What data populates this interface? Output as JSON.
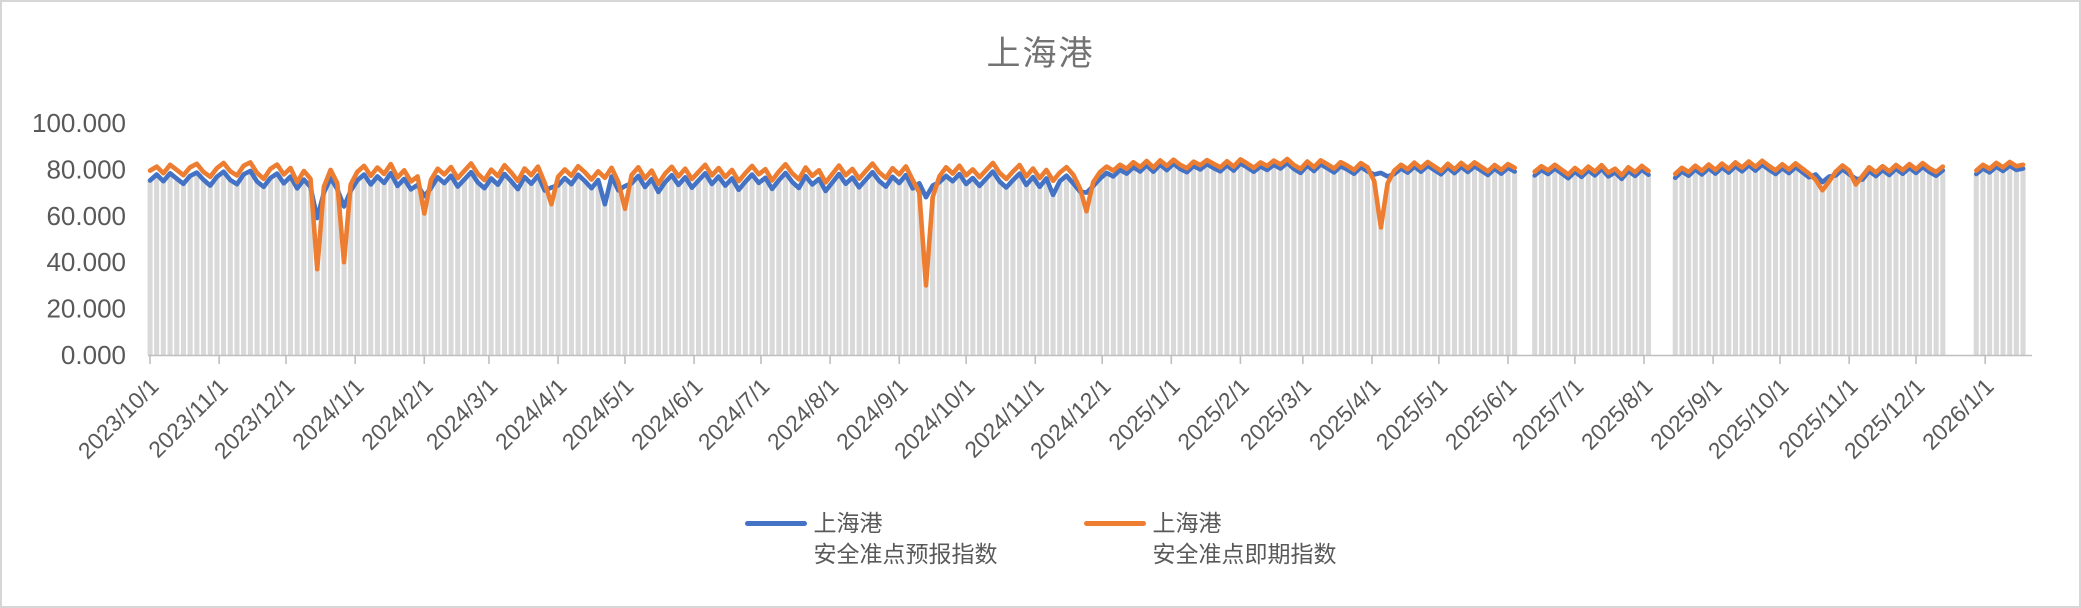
{
  "title": "上海港",
  "colors": {
    "forecast_blue": "#4472C4",
    "spot_orange": "#ED7D31",
    "background_bars": "#D9D9D9",
    "axis_line": "#BFBFBF",
    "tick_label": "#595959",
    "title_gray": "#737373"
  },
  "legend": [
    {
      "line1": "上海港",
      "line2": "安全准点预报指数",
      "series": "forecast",
      "color": "#4472C4"
    },
    {
      "line1": "上海港",
      "line2": "安全准点即期指数",
      "series": "spot",
      "color": "#ED7D31"
    }
  ],
  "y_axis": {
    "tick_labels": [
      "100.000",
      "80.000",
      "60.000",
      "40.000",
      "20.000",
      "0.000"
    ],
    "tick_values": [
      100,
      80,
      60,
      40,
      20,
      0
    ],
    "min": 0,
    "max": 100
  },
  "x_axis": {
    "tick_labels": [
      "2023/10/1",
      "2023/11/1",
      "2023/12/1",
      "2024/1/1",
      "2024/2/1",
      "2024/3/1",
      "2024/4/1",
      "2024/5/1",
      "2024/6/1",
      "2024/7/1",
      "2024/8/1",
      "2024/9/1",
      "2024/10/1",
      "2024/11/1",
      "2024/12/1",
      "2025/1/1",
      "2025/2/1",
      "2025/3/1",
      "2025/4/1",
      "2025/5/1",
      "2025/6/1",
      "2025/7/1",
      "2025/8/1",
      "2025/9/1",
      "2025/10/1",
      "2025/11/1",
      "2025/12/1",
      "2026/1/1"
    ]
  },
  "chart_data": {
    "type": "line",
    "title": "上海港",
    "ylabel": "",
    "xlabel": "",
    "ylim": [
      0,
      100
    ],
    "grid": false,
    "legend_position": "bottom",
    "x_start_date": "2023/10/1",
    "x_end_date": "2026/1/18",
    "x_axis_span_days": 844,
    "sample_interval_days": 3,
    "data_gaps": [
      "2025/6/6-2025/6/11",
      "2025/8/5-2025/8/13",
      "2025/12/16-2025/12/27"
    ],
    "background_bars": "light-gray columns every sample, from 0 up to the lower of the two series",
    "series": [
      {
        "name": "上海港安全准点预报指数",
        "color": "#4472C4",
        "values": [
          75.2,
          77.8,
          74.9,
          78.3,
          76.0,
          73.8,
          77.2,
          78.6,
          75.5,
          73.0,
          76.8,
          79.0,
          75.4,
          73.6,
          77.9,
          79.3,
          74.8,
          72.5,
          76.3,
          78.2,
          74.0,
          76.9,
          71.8,
          75.6,
          72.4,
          59.0,
          70.0,
          76.2,
          71.5,
          64.0,
          70.8,
          75.3,
          77.8,
          73.5,
          77.0,
          74.2,
          78.4,
          72.9,
          75.9,
          71.4,
          73.3,
          68.5,
          72.0,
          76.6,
          74.1,
          77.3,
          72.6,
          75.7,
          78.8,
          74.4,
          71.9,
          76.1,
          73.4,
          78.0,
          74.9,
          71.5,
          76.7,
          73.8,
          77.4,
          70.9,
          72.2,
          73.1,
          76.3,
          73.6,
          77.7,
          75.0,
          71.9,
          75.4,
          65.0,
          77.0,
          71.0,
          72.8,
          74.0,
          77.2,
          72.4,
          75.8,
          70.3,
          74.5,
          77.5,
          73.3,
          76.6,
          72.1,
          75.2,
          78.3,
          73.7,
          76.9,
          73.0,
          76.1,
          71.2,
          74.7,
          77.8,
          74.2,
          76.4,
          71.6,
          75.3,
          78.5,
          74.6,
          72.0,
          77.1,
          73.5,
          75.9,
          70.7,
          74.3,
          78.0,
          73.8,
          76.5,
          72.3,
          75.6,
          78.8,
          75.0,
          72.6,
          76.8,
          74.1,
          77.6,
          71.8,
          74.0,
          68.0,
          73.0,
          74.5,
          77.2,
          74.9,
          78.0,
          73.7,
          76.3,
          72.9,
          76.0,
          79.1,
          74.8,
          72.2,
          75.4,
          78.2,
          73.3,
          76.7,
          72.5,
          76.1,
          69.0,
          74.9,
          77.3,
          74.0,
          70.5,
          70.0,
          72.8,
          76.0,
          78.5,
          77.0,
          79.8,
          78.2,
          81.0,
          79.1,
          81.8,
          79.0,
          82.1,
          79.7,
          82.5,
          80.2,
          78.8,
          81.5,
          80.0,
          82.3,
          80.6,
          79.2,
          81.8,
          79.5,
          82.6,
          80.9,
          79.0,
          81.3,
          79.8,
          82.0,
          80.4,
          82.8,
          80.2,
          78.5,
          81.7,
          79.3,
          82.2,
          80.5,
          78.7,
          81.4,
          79.9,
          78.1,
          81.0,
          79.2,
          77.8,
          78.5,
          77.0,
          78.0,
          80.4,
          78.6,
          81.2,
          79.0,
          81.6,
          79.7,
          77.9,
          80.8,
          78.4,
          81.1,
          78.9,
          81.4,
          79.5,
          77.6,
          80.3,
          78.2,
          80.7,
          79.1,
          null,
          null,
          77.4,
          79.8,
          78.0,
          80.4,
          78.3,
          76.2,
          79.0,
          76.8,
          79.6,
          77.4,
          80.2,
          77.0,
          78.7,
          75.9,
          79.3,
          77.2,
          79.9,
          77.7,
          null,
          null,
          null,
          76.4,
          79.1,
          77.3,
          80.0,
          77.8,
          80.5,
          78.2,
          80.9,
          78.6,
          81.4,
          79.2,
          81.8,
          79.5,
          82.1,
          79.9,
          78.0,
          80.6,
          78.4,
          81.0,
          78.8,
          76.6,
          77.8,
          74.5,
          76.9,
          77.4,
          80.1,
          77.9,
          76.0,
          75.6,
          79.3,
          77.1,
          79.8,
          77.6,
          80.3,
          78.1,
          80.7,
          78.5,
          81.1,
          78.9,
          77.3,
          79.6,
          null,
          null,
          null,
          null,
          78.0,
          80.4,
          78.7,
          81.2,
          79.3,
          81.6,
          79.8,
          80.4
        ]
      },
      {
        "name": "上海港安全准点即期指数",
        "color": "#ED7D31",
        "values": [
          79.5,
          81.2,
          78.3,
          82.0,
          79.8,
          77.5,
          80.9,
          82.4,
          78.9,
          76.8,
          80.5,
          82.8,
          79.2,
          77.4,
          81.6,
          83.0,
          78.5,
          75.9,
          80.2,
          82.1,
          77.8,
          80.6,
          74.5,
          79.3,
          76.0,
          37.0,
          72.5,
          79.8,
          74.0,
          40.0,
          73.5,
          79.0,
          81.5,
          77.2,
          80.8,
          78.0,
          82.3,
          76.5,
          79.6,
          74.8,
          77.0,
          61.0,
          75.5,
          80.3,
          77.8,
          81.0,
          76.2,
          79.4,
          82.6,
          78.1,
          75.4,
          79.9,
          77.1,
          81.8,
          78.6,
          75.0,
          80.4,
          77.5,
          81.2,
          74.2,
          65.0,
          76.8,
          80.0,
          77.3,
          81.4,
          78.8,
          75.6,
          79.2,
          76.4,
          80.7,
          74.6,
          63.0,
          77.6,
          80.9,
          76.1,
          79.5,
          73.8,
          78.2,
          81.1,
          77.0,
          80.3,
          75.8,
          78.9,
          82.0,
          77.4,
          80.6,
          76.7,
          79.8,
          74.9,
          78.4,
          81.5,
          77.9,
          80.1,
          75.2,
          79.0,
          82.2,
          78.3,
          75.7,
          80.8,
          77.2,
          79.6,
          74.4,
          78.0,
          81.7,
          77.5,
          80.2,
          76.0,
          79.3,
          82.5,
          78.7,
          76.3,
          80.5,
          77.8,
          81.3,
          75.5,
          70.0,
          30.0,
          68.0,
          77.0,
          80.9,
          78.2,
          81.6,
          77.4,
          80.0,
          76.6,
          79.7,
          82.8,
          78.5,
          75.9,
          79.1,
          81.9,
          77.0,
          80.4,
          76.2,
          79.8,
          75.1,
          78.6,
          81.0,
          77.7,
          72.0,
          62.0,
          74.5,
          78.8,
          81.2,
          79.5,
          82.0,
          80.3,
          83.1,
          81.0,
          83.6,
          80.8,
          83.9,
          81.5,
          84.2,
          82.0,
          80.5,
          83.3,
          81.8,
          84.0,
          82.4,
          80.9,
          83.5,
          81.2,
          84.3,
          82.6,
          80.7,
          83.0,
          81.5,
          83.8,
          82.1,
          84.5,
          81.9,
          80.2,
          83.4,
          81.0,
          83.9,
          82.2,
          80.4,
          83.1,
          81.6,
          79.8,
          82.7,
          80.9,
          75.0,
          55.0,
          74.0,
          79.5,
          82.0,
          80.1,
          82.9,
          80.6,
          83.2,
          81.3,
          79.4,
          82.4,
          80.0,
          82.8,
          80.5,
          83.0,
          81.1,
          79.2,
          81.9,
          79.8,
          82.3,
          80.7,
          null,
          null,
          79.0,
          81.4,
          79.6,
          82.0,
          79.9,
          77.8,
          80.6,
          78.4,
          81.2,
          79.0,
          81.8,
          78.6,
          80.3,
          77.5,
          80.9,
          78.8,
          81.5,
          79.3,
          null,
          null,
          null,
          78.0,
          80.7,
          78.9,
          81.6,
          79.4,
          82.1,
          79.8,
          82.5,
          80.2,
          83.0,
          80.8,
          83.4,
          81.1,
          83.7,
          81.5,
          79.6,
          82.2,
          80.0,
          82.6,
          80.4,
          78.2,
          75.5,
          71.0,
          74.8,
          79.0,
          81.7,
          79.5,
          73.5,
          77.2,
          80.9,
          78.7,
          81.4,
          79.2,
          81.9,
          79.7,
          82.3,
          80.1,
          82.7,
          80.5,
          78.9,
          81.2,
          null,
          null,
          null,
          null,
          79.5,
          82.0,
          80.3,
          82.8,
          80.9,
          83.2,
          81.4,
          82.0
        ]
      }
    ]
  }
}
